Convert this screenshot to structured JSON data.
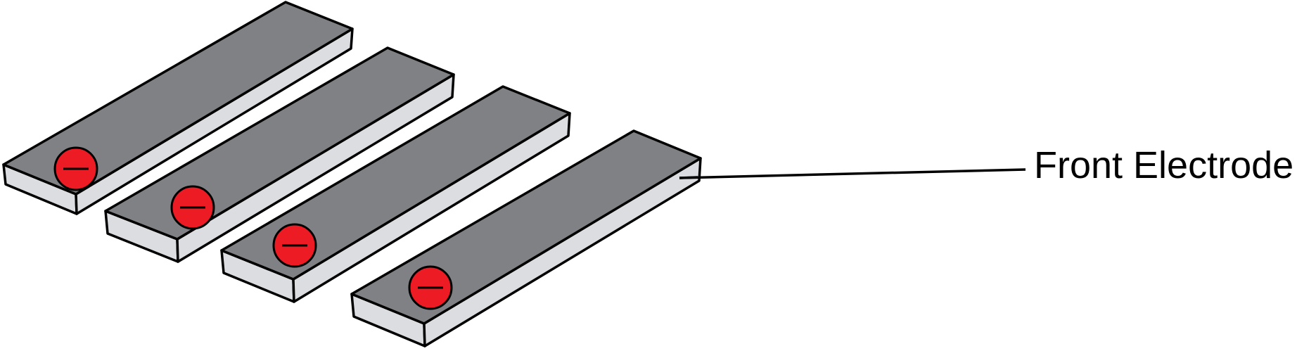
{
  "diagram": {
    "label": "Front Electrode",
    "electrode_count": 4,
    "charge_symbol": "minus-sign",
    "colors": {
      "top_face": "#808184",
      "side_face": "#dcdde0",
      "outline": "#000000",
      "charge_fill": "#ed1c24",
      "leader_line": "#000000"
    }
  }
}
